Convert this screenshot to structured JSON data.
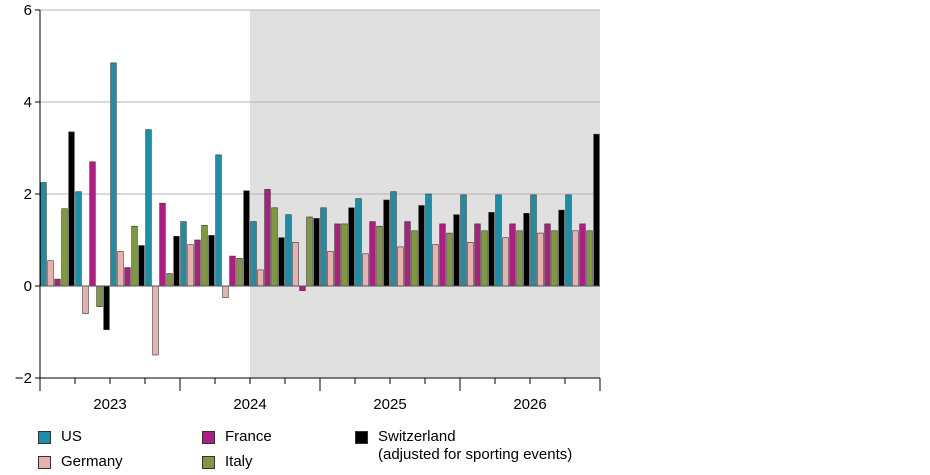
{
  "chart_data": {
    "type": "bar",
    "yticks": [
      -2,
      0,
      2,
      4,
      6
    ],
    "ylim": [
      -2,
      6
    ],
    "grid": true,
    "forecast_shading_from_index": 6,
    "quarter_labels": [
      "2023",
      "2024",
      "2025",
      "2026"
    ],
    "categories": [
      "2023 Q1",
      "2023 Q2",
      "2023 Q3",
      "2023 Q4",
      "2024 Q1",
      "2024 Q2",
      "2024 Q3",
      "2024 Q4",
      "2025 Q1",
      "2025 Q2",
      "2025 Q3",
      "2025 Q4",
      "2026 Q1",
      "2026 Q2",
      "2026 Q3",
      "2026 Q4"
    ],
    "series": [
      {
        "name": "US",
        "color": "#1b8fa8",
        "values": [
          2.25,
          2.05,
          4.85,
          3.4,
          1.4,
          2.85,
          1.4,
          1.55,
          1.7,
          1.9,
          2.05,
          2.0,
          1.98,
          1.98,
          1.98,
          1.98
        ]
      },
      {
        "name": "Germany",
        "color": "#e8b1ad",
        "values": [
          0.55,
          -0.6,
          0.75,
          -1.5,
          0.9,
          -0.25,
          0.35,
          0.95,
          0.75,
          0.7,
          0.85,
          0.9,
          0.95,
          1.05,
          1.15,
          1.2
        ]
      },
      {
        "name": "France",
        "color": "#b01c82",
        "values": [
          0.15,
          2.7,
          0.4,
          1.8,
          1.0,
          0.65,
          2.1,
          -0.1,
          1.35,
          1.4,
          1.4,
          1.35,
          1.35,
          1.35,
          1.35,
          1.35
        ]
      },
      {
        "name": "Italy",
        "color": "#7f9a3e",
        "values": [
          1.68,
          -0.45,
          1.3,
          0.27,
          1.32,
          0.6,
          1.7,
          1.5,
          1.35,
          1.3,
          1.2,
          1.15,
          1.2,
          1.2,
          1.2,
          1.2
        ]
      },
      {
        "name": "Switzerland",
        "color": "#000000",
        "values": [
          3.35,
          -0.95,
          0.88,
          1.08,
          1.1,
          2.07,
          1.05,
          1.47,
          1.7,
          1.87,
          1.75,
          1.55,
          1.6,
          1.58,
          1.65,
          3.3
        ]
      }
    ],
    "legend": [
      {
        "label": "US",
        "color": "#1b8fa8"
      },
      {
        "label": "Germany",
        "color": "#e8b1ad"
      },
      {
        "label": "France",
        "color": "#b01c82"
      },
      {
        "label": "Italy",
        "color": "#7f9a3e"
      },
      {
        "label": "Switzerland\n(adjusted for sporting events)",
        "color": "#000000"
      }
    ],
    "legend_placement": "bottom"
  }
}
